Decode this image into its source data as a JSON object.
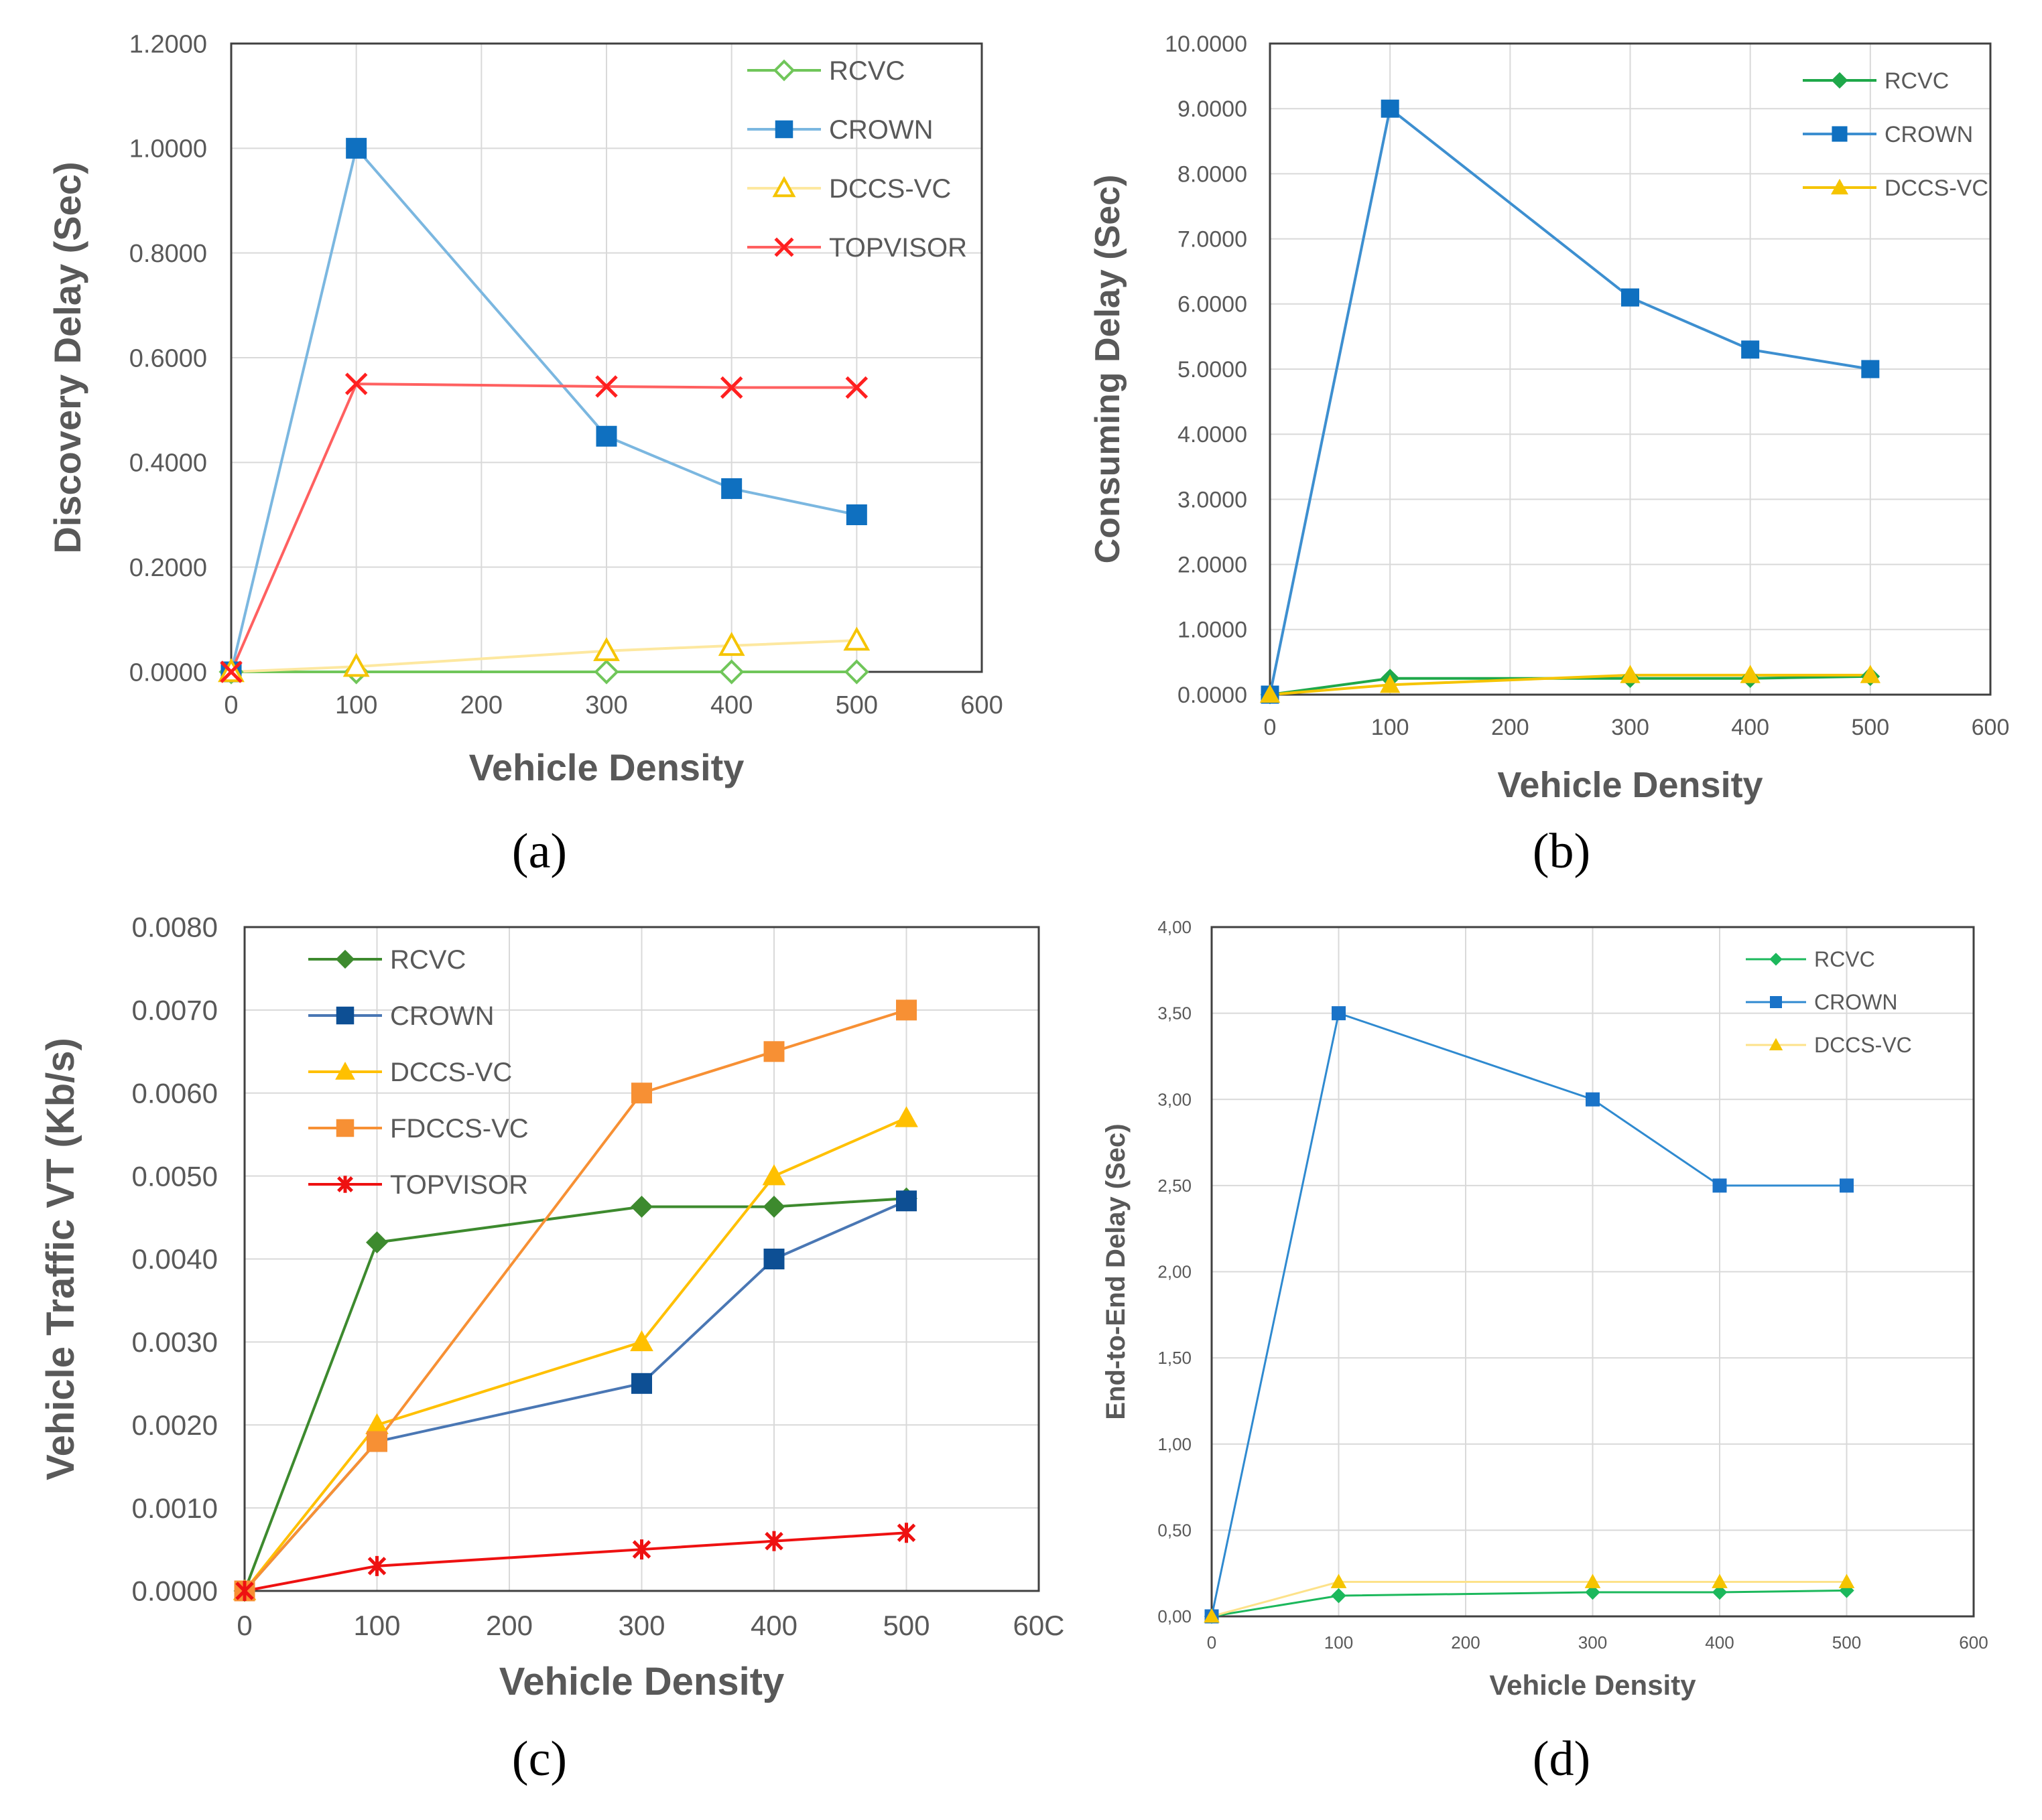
{
  "chart_data": [
    {
      "type": "line",
      "caption": "(a)",
      "xlabel": "Vehicle Density",
      "ylabel": "Discovery Delay (Sec)",
      "xlim": [
        0,
        600
      ],
      "ylim": [
        0,
        1.2
      ],
      "xticks": [
        "0",
        "100",
        "200",
        "300",
        "400",
        "500",
        "600"
      ],
      "yticks": [
        "0.0000",
        "0.2000",
        "0.4000",
        "0.6000",
        "0.8000",
        "1.0000",
        "1.2000"
      ],
      "grid": true,
      "legend_position": "top-right",
      "x": [
        0,
        100,
        300,
        400,
        500
      ],
      "series": [
        {
          "name": "RCVC",
          "color": "#70c65a",
          "marker": "diamond-open",
          "values": [
            0,
            0,
            0,
            0,
            0
          ]
        },
        {
          "name": "CROWN",
          "color": "#0f70c0",
          "line_color": "#7bb7e0",
          "marker": "square",
          "values": [
            0,
            1.0,
            0.45,
            0.35,
            0.3
          ]
        },
        {
          "name": "DCCS-VC",
          "color": "#f5c400",
          "line_color": "#fde8a0",
          "marker": "triangle-open",
          "values": [
            0,
            0.01,
            0.04,
            0.05,
            0.06
          ]
        },
        {
          "name": "TOPVISOR",
          "color": "#ff2020",
          "line_color": "#ff6060",
          "marker": "x",
          "values": [
            0,
            0.55,
            0.545,
            0.543,
            0.543
          ]
        }
      ]
    },
    {
      "type": "line",
      "caption": "(b)",
      "xlabel": "Vehicle Density",
      "ylabel": "Consuming Delay (Sec)",
      "xlim": [
        0,
        600
      ],
      "ylim": [
        0,
        10
      ],
      "xticks": [
        "0",
        "100",
        "200",
        "300",
        "400",
        "500",
        "600"
      ],
      "yticks": [
        "0.0000",
        "1.0000",
        "2.0000",
        "3.0000",
        "4.0000",
        "5.0000",
        "6.0000",
        "7.0000",
        "8.0000",
        "9.0000",
        "10.0000"
      ],
      "grid": true,
      "legend_position": "top-right",
      "x": [
        0,
        100,
        300,
        400,
        500
      ],
      "series": [
        {
          "name": "RCVC",
          "color": "#1fa84a",
          "marker": "diamond",
          "values": [
            0,
            0.25,
            0.25,
            0.25,
            0.28
          ]
        },
        {
          "name": "CROWN",
          "color": "#0f70c0",
          "line_color": "#3d8fd0",
          "marker": "square",
          "values": [
            0,
            9.0,
            6.1,
            5.3,
            5.0
          ]
        },
        {
          "name": "DCCS-VC",
          "color": "#f5c400",
          "line_color": "#f5c400",
          "marker": "triangle",
          "values": [
            0,
            0.15,
            0.3,
            0.3,
            0.3
          ]
        }
      ]
    },
    {
      "type": "line",
      "caption": "(c)",
      "xlabel": "Vehicle Density",
      "ylabel": "Vehicle Traffic VT (Kb/s)",
      "xlim": [
        0,
        600
      ],
      "ylim": [
        0,
        0.008
      ],
      "xticks": [
        "0",
        "100",
        "200",
        "300",
        "400",
        "500",
        "60C"
      ],
      "yticks": [
        "0.0000",
        "0.0010",
        "0.0020",
        "0.0030",
        "0.0040",
        "0.0050",
        "0.0060",
        "0.0070",
        "0.0080"
      ],
      "grid": true,
      "legend_position": "top-left",
      "x": [
        0,
        100,
        300,
        400,
        500
      ],
      "series": [
        {
          "name": "RCVC",
          "color": "#3d8a2e",
          "marker": "diamond",
          "values": [
            0,
            0.0042,
            0.00463,
            0.00463,
            0.00473
          ]
        },
        {
          "name": "CROWN",
          "color": "#0d4f94",
          "line_color": "#4a77b4",
          "marker": "square",
          "values": [
            0,
            0.0018,
            0.0025,
            0.004,
            0.0047
          ]
        },
        {
          "name": "DCCS-VC",
          "color": "#ffc000",
          "line_color": "#ffc000",
          "marker": "triangle",
          "values": [
            0,
            0.002,
            0.003,
            0.005,
            0.0057
          ]
        },
        {
          "name": "FDCCS-VC",
          "color": "#f79034",
          "line_color": "#f79034",
          "marker": "square",
          "values": [
            0,
            0.0018,
            0.006,
            0.0065,
            0.007
          ]
        },
        {
          "name": "TOPVISOR",
          "color": "#ee1111",
          "line_color": "#ee1111",
          "marker": "asterisk",
          "values": [
            0,
            0.0003,
            0.0005,
            0.0006,
            0.0007
          ]
        }
      ]
    },
    {
      "type": "line",
      "caption": "(d)",
      "xlabel": "Vehicle Density",
      "ylabel": "End-to-End Delay (Sec)",
      "xlim": [
        0,
        600
      ],
      "ylim": [
        0,
        4
      ],
      "xticks": [
        "0",
        "100",
        "200",
        "300",
        "400",
        "500",
        "600"
      ],
      "yticks": [
        "0,00",
        "0,50",
        "1,00",
        "1,50",
        "2,00",
        "2,50",
        "3,00",
        "3,50",
        "4,00"
      ],
      "grid": true,
      "legend_position": "top-right",
      "x": [
        0,
        100,
        300,
        400,
        500
      ],
      "series": [
        {
          "name": "RCVC",
          "color": "#1cb85c",
          "marker": "diamond",
          "values": [
            0,
            0.12,
            0.14,
            0.14,
            0.15
          ]
        },
        {
          "name": "CROWN",
          "color": "#1a73c8",
          "line_color": "#2f8ad0",
          "marker": "square",
          "values": [
            0,
            3.5,
            3.0,
            2.5,
            2.5
          ]
        },
        {
          "name": "DCCS-VC",
          "color": "#f5c400",
          "line_color": "#fde28a",
          "marker": "triangle",
          "values": [
            0,
            0.2,
            0.2,
            0.2,
            0.2
          ]
        }
      ]
    }
  ]
}
